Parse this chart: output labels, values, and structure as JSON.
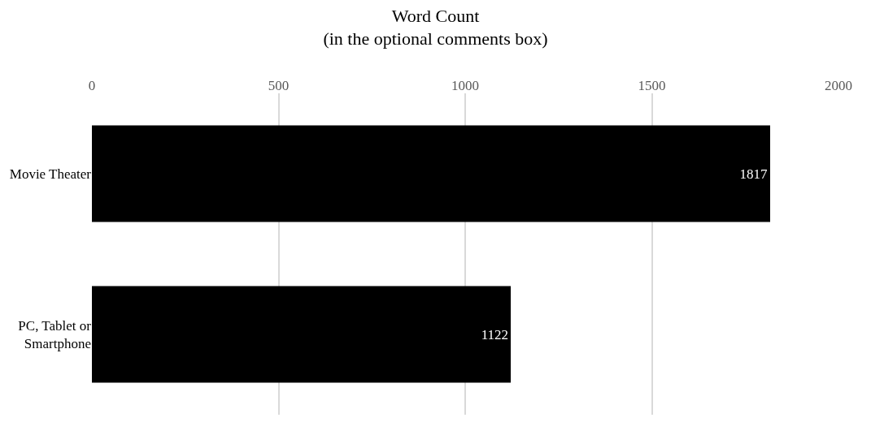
{
  "chart_data": {
    "type": "bar",
    "orientation": "horizontal",
    "title": "Word Count",
    "subtitle": "(in the optional comments box)",
    "categories": [
      "Movie Theater",
      "PC, Tablet or Smartphone"
    ],
    "values": [
      1817,
      1122
    ],
    "color": "#000000",
    "xlim": [
      0,
      2000
    ],
    "xticks": [
      0,
      500,
      1000,
      1500,
      2000
    ],
    "grid": "x",
    "data_labels": true
  }
}
